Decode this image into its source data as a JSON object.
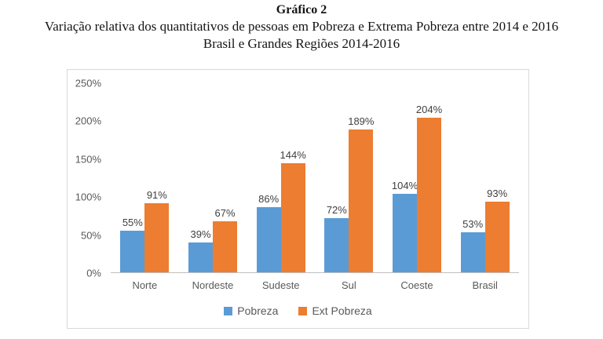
{
  "header": {
    "title": "Gráfico 2",
    "subtitle_line1": "Variação relativa dos quantitativos de pessoas em Pobreza e Extrema Pobreza entre 2014 e 2016",
    "subtitle_line2": "Brasil e Grandes Regiões 2014-2016"
  },
  "chart_data": {
    "type": "bar",
    "categories": [
      "Norte",
      "Nordeste",
      "Sudeste",
      "Sul",
      "Coeste",
      "Brasil"
    ],
    "series": [
      {
        "name": "Pobreza",
        "color": "#5B9BD5",
        "values": [
          55,
          39,
          86,
          72,
          104,
          53
        ]
      },
      {
        "name": "Ext Pobreza",
        "color": "#ED7D31",
        "values": [
          91,
          67,
          144,
          189,
          204,
          93
        ]
      }
    ],
    "unit": "%",
    "data_labels": true,
    "ylim": [
      0,
      250
    ],
    "yticks": [
      0,
      50,
      100,
      150,
      200,
      250
    ],
    "ytick_labels": [
      "0%",
      "50%",
      "100%",
      "150%",
      "200%",
      "250%"
    ],
    "grid": false,
    "legend_position": "bottom",
    "colors": {
      "axis_text": "#595959",
      "data_label": "#404040",
      "plot_border": "#D9D9D9",
      "axis_line": "#BFBFBF"
    }
  }
}
